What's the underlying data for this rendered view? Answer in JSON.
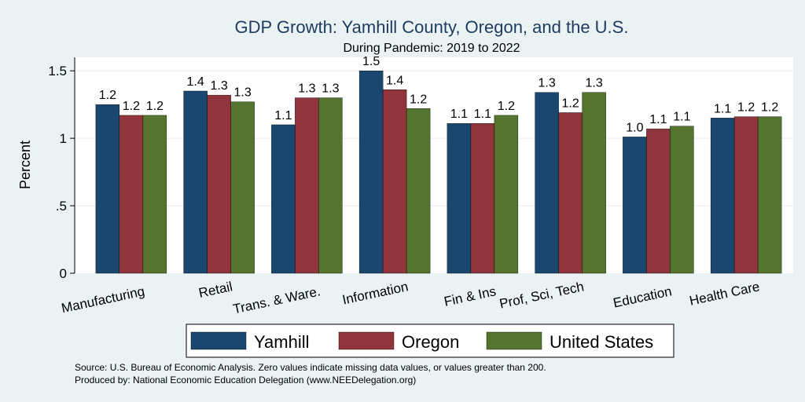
{
  "chart_data": {
    "type": "bar",
    "title": "GDP Growth: Yamhill County, Oregon, and the U.S.",
    "subtitle": "During Pandemic: 2019 to 2022",
    "ylabel": "Percent",
    "ylim": [
      0,
      1.6
    ],
    "yticks": [
      0,
      0.5,
      1,
      1.5
    ],
    "ytick_labels": [
      "0",
      ".5",
      "1",
      "1.5"
    ],
    "categories": [
      "Manufacturing",
      "Retail",
      "Trans. & Ware.",
      "Information",
      "Fin & Ins",
      "Prof, Sci, Tech",
      "Education",
      "Health Care"
    ],
    "series": [
      {
        "name": "Yamhill",
        "color": "#1a476f",
        "values": [
          1.25,
          1.35,
          1.1,
          1.5,
          1.11,
          1.34,
          1.01,
          1.15
        ],
        "labels": [
          "1.2",
          "1.4",
          "1.1",
          "1.5",
          "1.1",
          "1.3",
          "1.0",
          "1.1"
        ]
      },
      {
        "name": "Oregon",
        "color": "#90353b",
        "values": [
          1.17,
          1.32,
          1.3,
          1.36,
          1.11,
          1.19,
          1.07,
          1.16
        ],
        "labels": [
          "1.2",
          "1.3",
          "1.3",
          "1.4",
          "1.1",
          "1.2",
          "1.1",
          "1.2"
        ]
      },
      {
        "name": "United States",
        "color": "#55752f",
        "values": [
          1.17,
          1.27,
          1.3,
          1.22,
          1.17,
          1.34,
          1.09,
          1.16
        ],
        "labels": [
          "1.2",
          "1.3",
          "1.3",
          "1.2",
          "1.2",
          "1.3",
          "1.1",
          "1.2"
        ]
      }
    ],
    "grid": true,
    "legend_position": "bottom"
  },
  "source": {
    "line1": "Source: U.S. Bureau of Economic Analysis. Zero values indicate missing data values, or values greater than 200.",
    "line2": "Produced by: National Economic Education Delegation (www.NEEDelegation.org)"
  }
}
